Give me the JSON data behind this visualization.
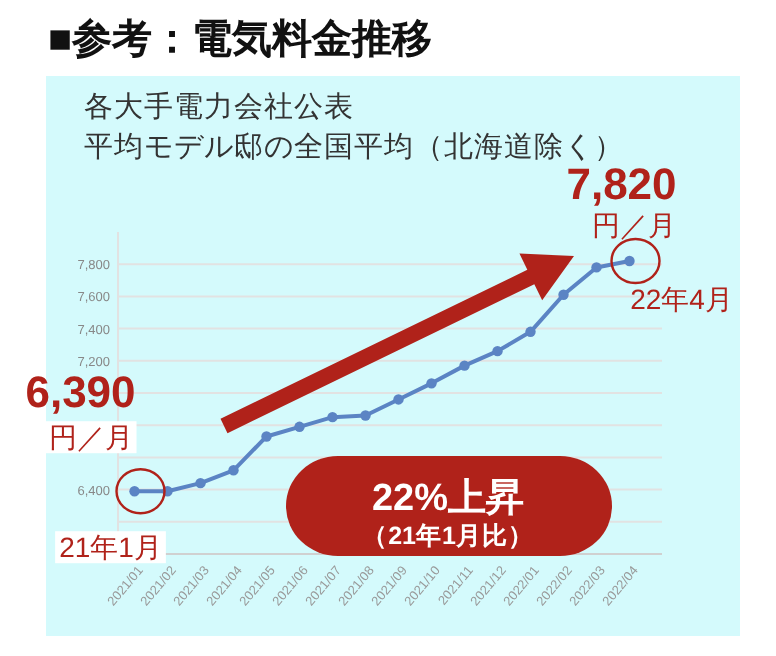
{
  "chart_data": {
    "type": "line",
    "title": "■参考：電気料金推移",
    "subtitle": "各大手電力会社公表",
    "categories": [
      "2021/01",
      "2021/02",
      "2021/03",
      "2021/04",
      "2021/05",
      "2021/06",
      "2021/07",
      "2021/08",
      "2021/09",
      "2021/10",
      "2021/11",
      "2021/12",
      "2022/01",
      "2022/02",
      "2022/03",
      "2022/04"
    ],
    "series": [
      {
        "color": "#5b84c4",
        "values": [
          6390,
          6390,
          6440,
          6520,
          6730,
          6790,
          6850,
          6860,
          6960,
          7060,
          7170,
          7260,
          7380,
          7610,
          7780,
          7820
        ],
        "value_labels": [
          "6,390",
          null,
          null,
          null,
          null,
          null,
          null,
          null,
          null,
          null,
          null,
          null,
          null,
          null,
          null,
          "7,820"
        ]
      }
    ],
    "ylim": [
      6000,
      8000
    ],
    "yticks": [
      {
        "value": 6000,
        "label": null
      },
      {
        "value": 6200,
        "label": null
      },
      {
        "value": 6400,
        "label": "6,400"
      },
      {
        "value": 6600,
        "label": null
      },
      {
        "value": 6800,
        "label": null
      },
      {
        "value": 7000,
        "label": null
      },
      {
        "value": 7200,
        "label": "7,200"
      },
      {
        "value": 7400,
        "label": "7,400"
      },
      {
        "value": 7600,
        "label": "7,600"
      },
      {
        "value": 7800,
        "label": "7,800"
      }
    ],
    "grid": "y",
    "marker": "circle",
    "annotations": [
      {
        "text": "円／月",
        "x": "2021/01",
        "y": 6390
      },
      {
        "text": "21年1月",
        "x": "2021/01",
        "y": 6390
      },
      {
        "text": "円／月",
        "x": "2022/04",
        "y": 7820
      },
      {
        "text": "22年4月",
        "x": "2022/04",
        "y": 7820
      },
      "平均モデル邸の全国平均（北海道除く）",
      "22%上昇",
      "（21年1月比）"
    ]
  }
}
